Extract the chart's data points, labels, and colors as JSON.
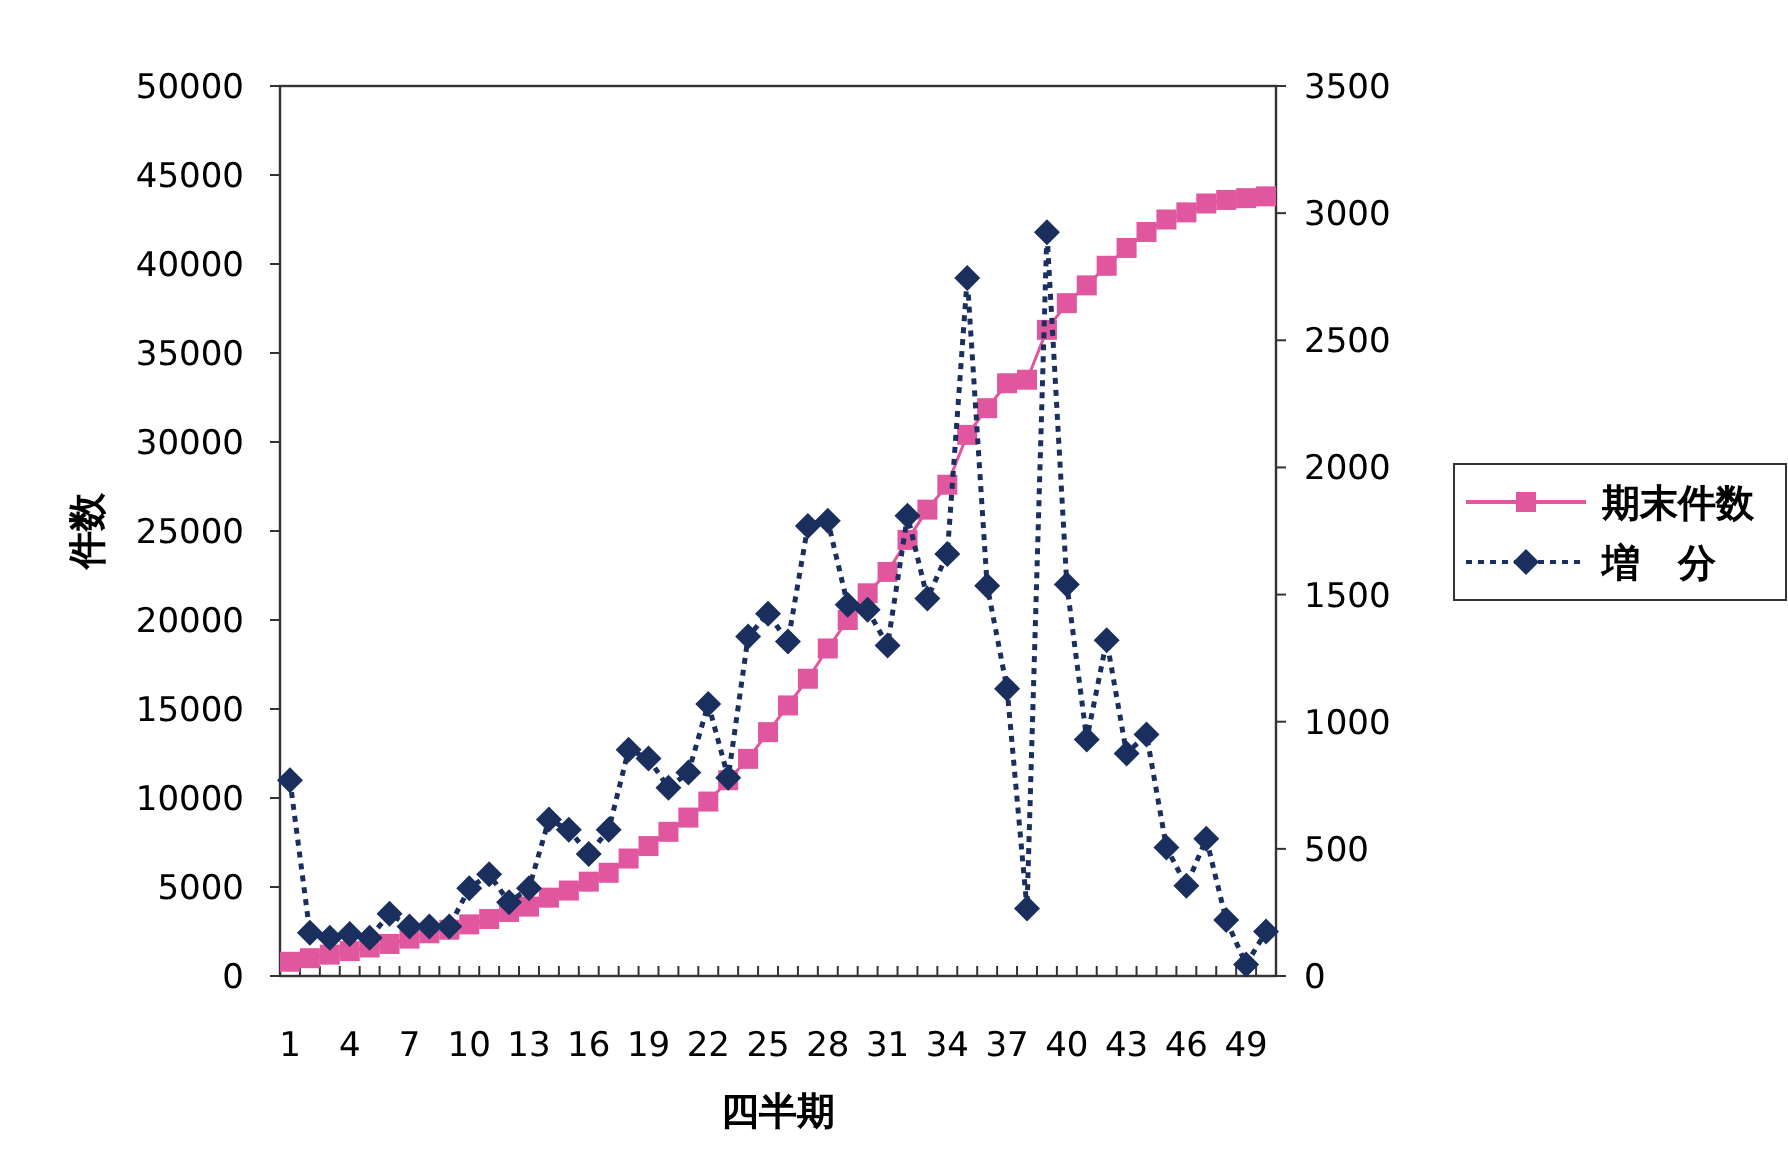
{
  "chart_data": {
    "type": "line",
    "xlabel": "四半期",
    "ylabel": "件数",
    "categories": [
      "1",
      null,
      null,
      "4",
      null,
      null,
      "7",
      null,
      null,
      "10",
      null,
      null,
      "13",
      null,
      null,
      "16",
      null,
      null,
      "19",
      null,
      null,
      "22",
      null,
      null,
      "25",
      null,
      null,
      "28",
      null,
      null,
      "31",
      null,
      null,
      "34",
      null,
      null,
      "37",
      null,
      null,
      "40",
      null,
      null,
      "43",
      null,
      null,
      "46",
      null,
      null,
      "49",
      null
    ],
    "series": [
      {
        "name": "期末件数",
        "color": "#e0569f",
        "marker": "square",
        "line_style": "solid",
        "values": [
          800,
          1000,
          1200,
          1400,
          1600,
          1800,
          2100,
          2400,
          2600,
          2900,
          3200,
          3600,
          3900,
          4400,
          4800,
          5300,
          5800,
          6600,
          7300,
          8100,
          8900,
          9800,
          11000,
          12200,
          13700,
          15200,
          16700,
          18400,
          20000,
          21500,
          22700,
          24500,
          26200,
          27600,
          30400,
          31900,
          33300,
          33500,
          36300,
          37800,
          38800,
          39900,
          40900,
          41800,
          42500,
          42900,
          43400,
          43600,
          43700,
          43800
        ]
      },
      {
        "name": "増　分",
        "color": "#1a2f5e",
        "marker": "diamond",
        "line_style": "dotted",
        "axis": "y2",
        "values": [
          770,
          170,
          150,
          165,
          150,
          245,
          195,
          195,
          195,
          345,
          400,
          290,
          345,
          615,
          575,
          480,
          575,
          890,
          855,
          740,
          800,
          1070,
          780,
          1335,
          1425,
          1315,
          1770,
          1790,
          1460,
          1440,
          1300,
          1810,
          1485,
          1660,
          2745,
          1535,
          1130,
          265,
          2925,
          1540,
          930,
          1320,
          875,
          950,
          505,
          355,
          540,
          220,
          45,
          175
        ]
      }
    ],
    "ylim": [
      0,
      50000
    ],
    "yticks": [
      0,
      5000,
      10000,
      15000,
      20000,
      25000,
      30000,
      35000,
      40000,
      45000,
      50000
    ],
    "y2lim": [
      0,
      3500
    ],
    "y2ticks": [
      0,
      500,
      1000,
      1500,
      2000,
      2500,
      3000,
      3500
    ],
    "legend": "right",
    "grid": false
  }
}
